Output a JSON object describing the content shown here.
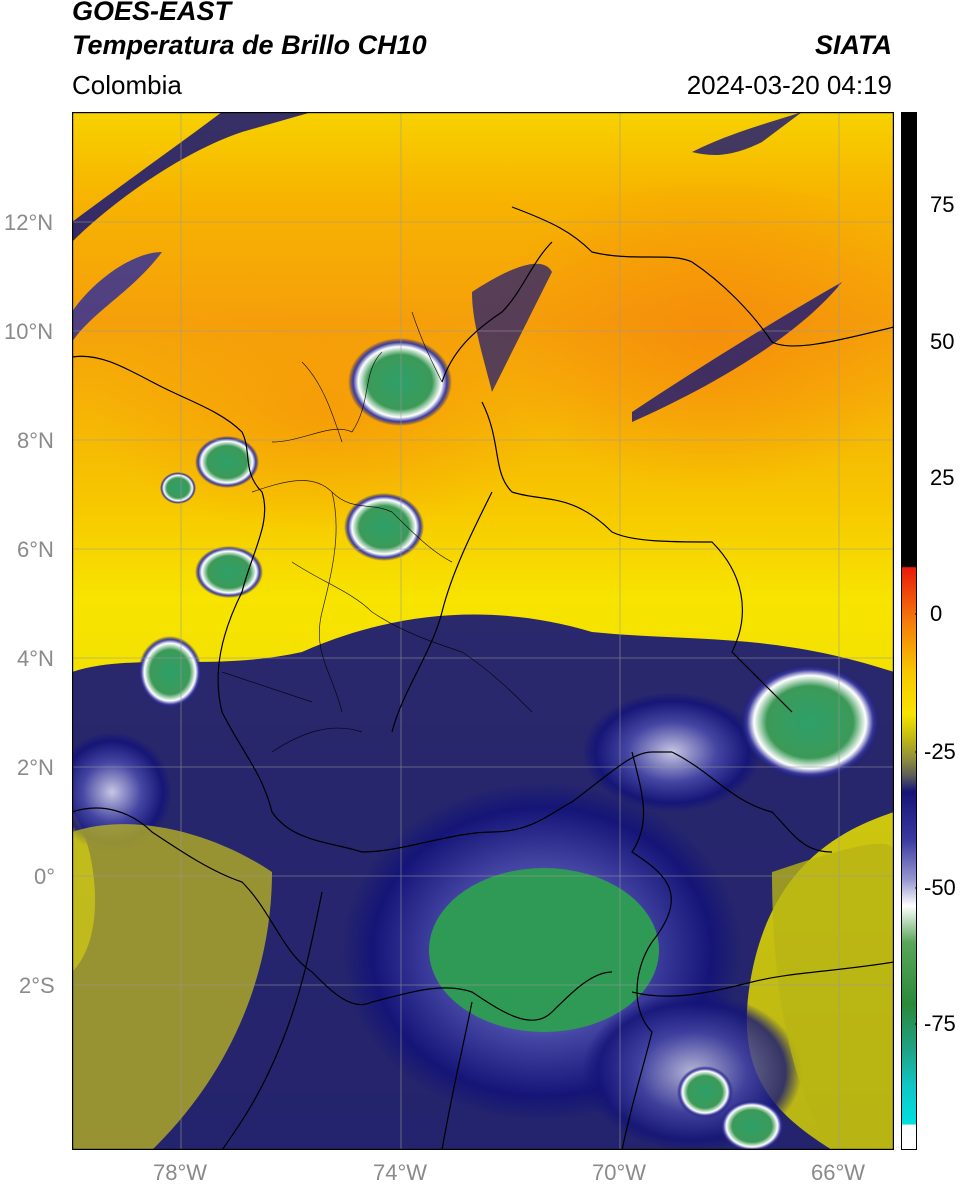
{
  "header": {
    "title_line1": "GOES-EAST",
    "title_line2": "Temperatura de Brillo CH10",
    "organization": "SIATA",
    "region": "Colombia",
    "datetime": "2024-03-20 04:19"
  },
  "map": {
    "lat_ticks": [
      "12°N",
      "10°N",
      "8°N",
      "6°N",
      "4°N",
      "2°N",
      "0°",
      "2°S"
    ],
    "lon_ticks": [
      "78°W",
      "74°W",
      "70°W",
      "66°W"
    ],
    "lat_range": [
      -5,
      14
    ],
    "lon_range": [
      -80,
      -65
    ]
  },
  "colorbar": {
    "tick_labels": [
      "75",
      "50",
      "25",
      "0",
      "-25",
      "-50",
      "-75"
    ],
    "range": [
      -100,
      90
    ]
  },
  "colors": {
    "orange": "#f59a0a",
    "yellow": "#f7e400",
    "olive": "#b8b414",
    "navy": "#141478",
    "white": "#ffffff",
    "green": "#2f9a55",
    "cyan": "#00d8d8",
    "red": "#e82a0a",
    "black": "#000000"
  }
}
